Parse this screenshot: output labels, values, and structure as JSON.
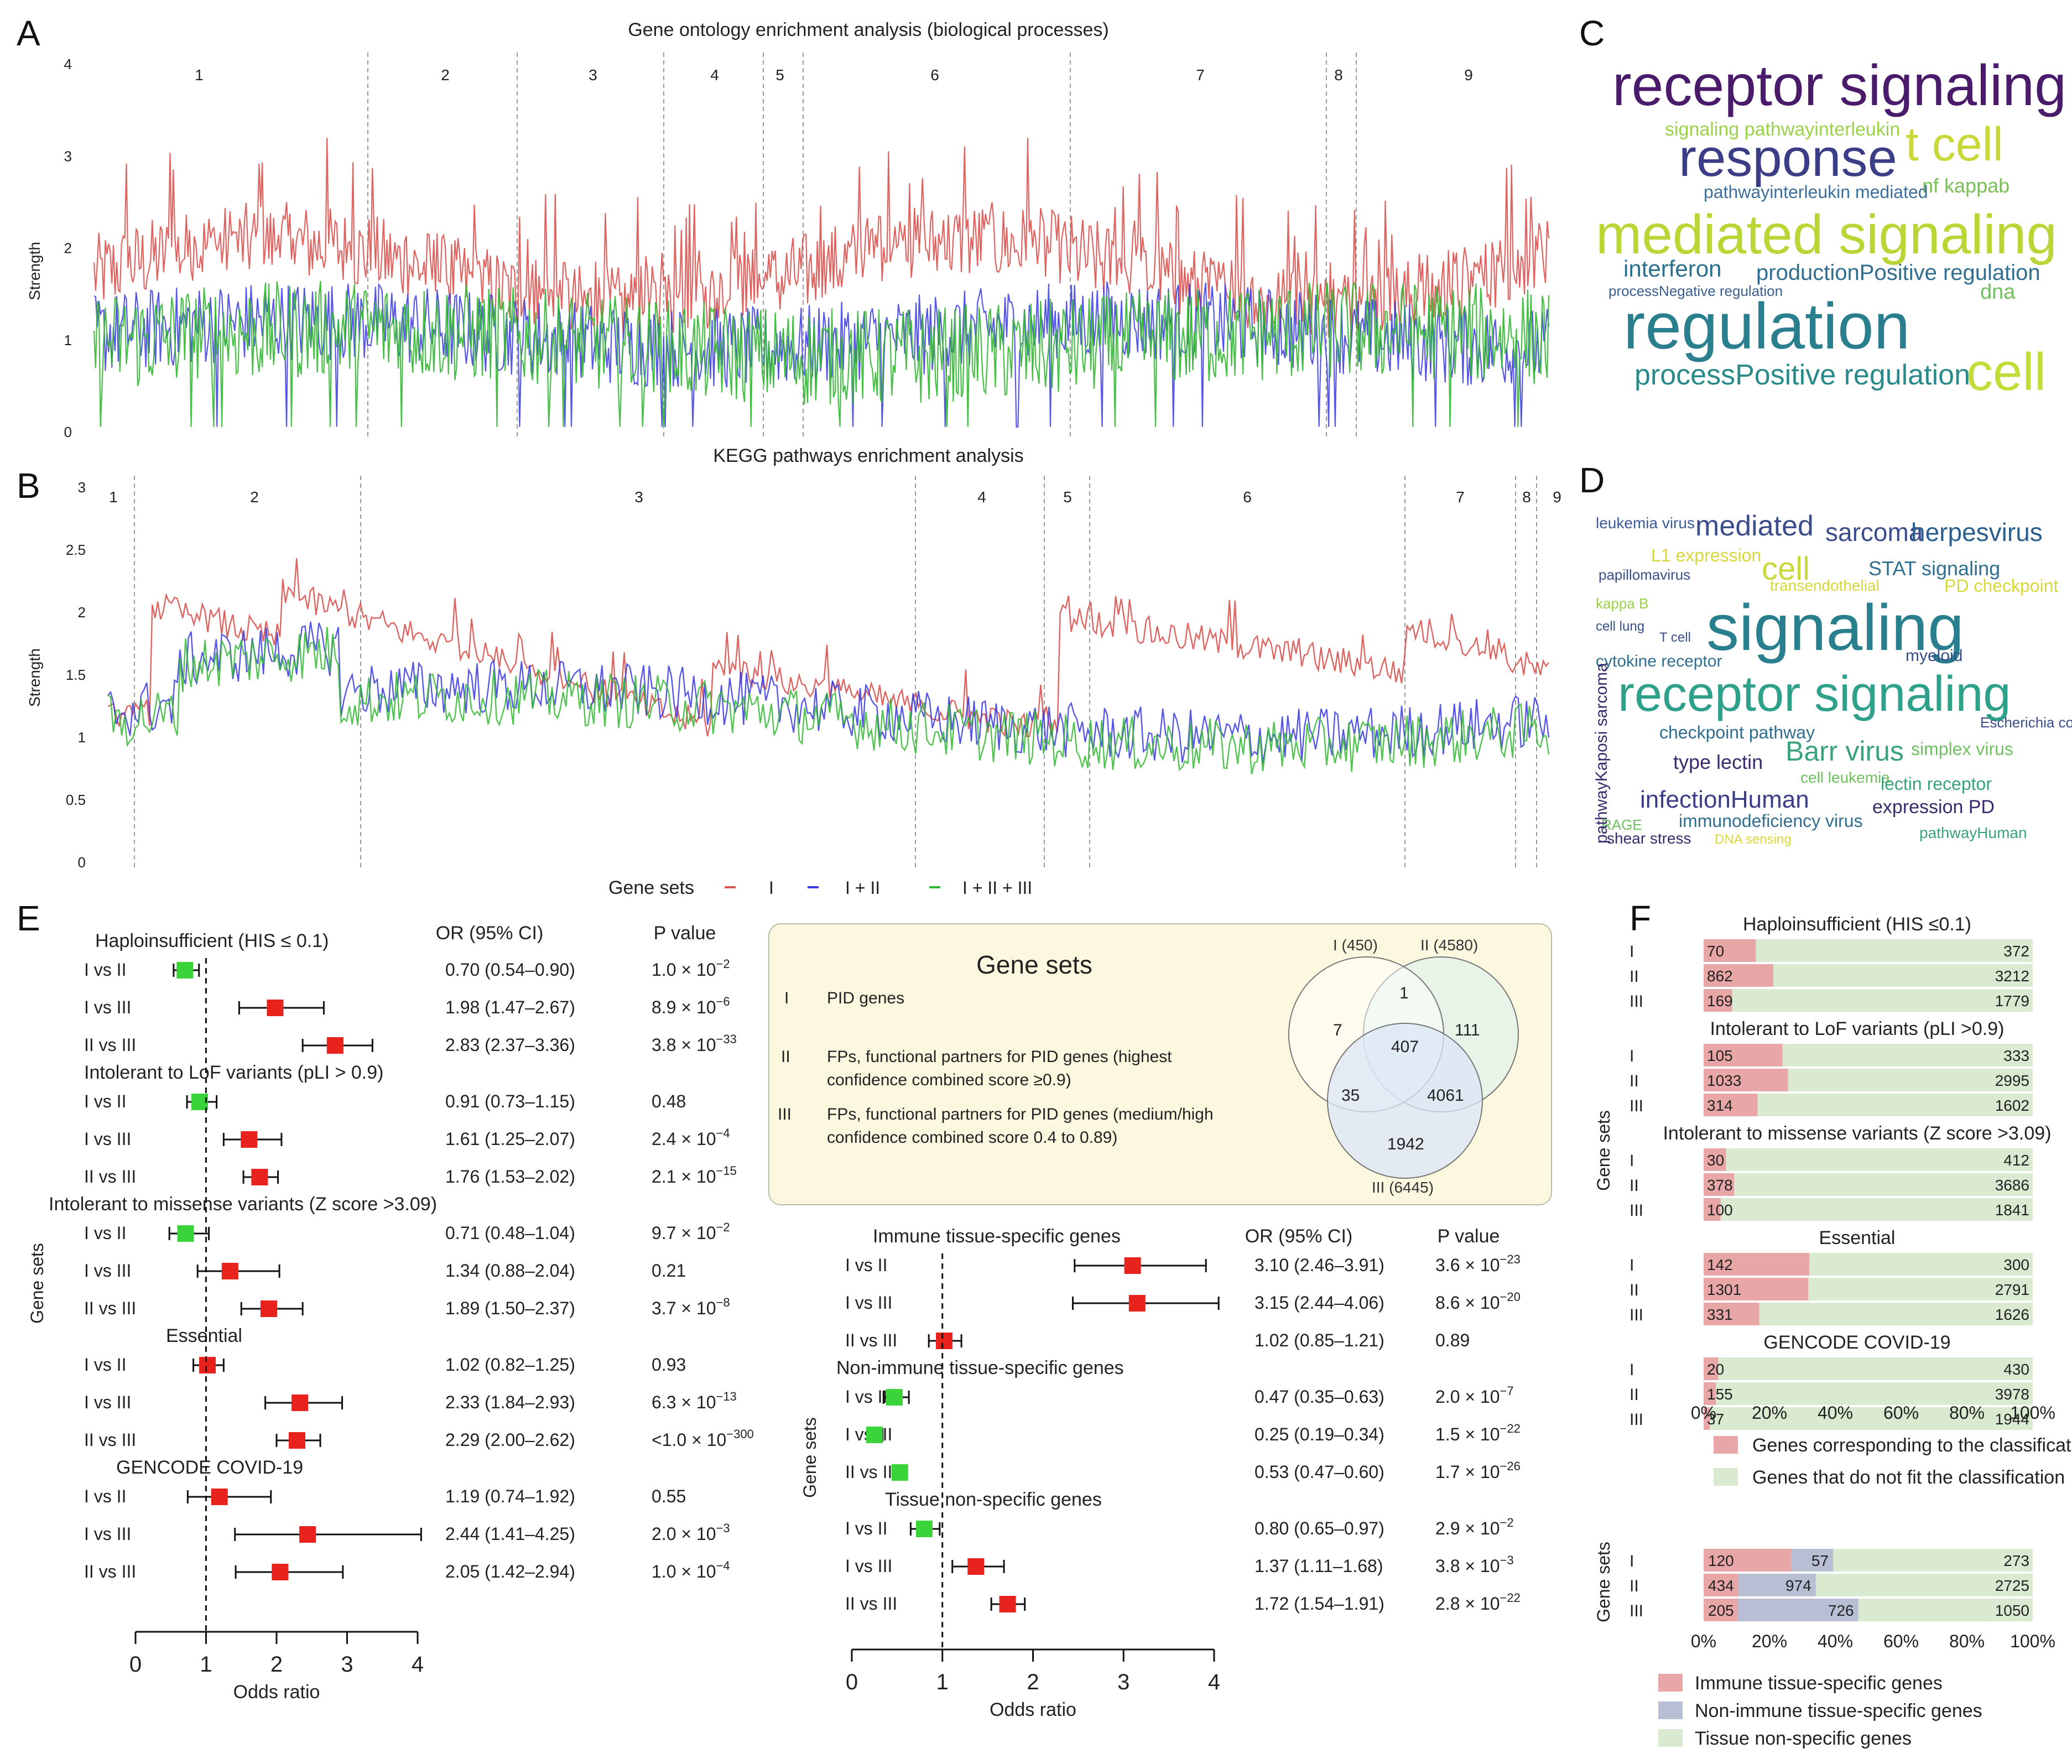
{
  "colors": {
    "red": "#d9534f",
    "redLight": "#e8a0a0",
    "blue": "#3a3ae0",
    "green": "#33b833",
    "markerRed": "#e8231e",
    "markerGreen": "#3ad43a",
    "barRed": "#e8a6a6",
    "barGreen": "#d9ead0",
    "barGrey": "#b8bfd4",
    "venn1": "#ffffff",
    "venn2": "#e4f3e8",
    "venn3": "#dbe6f7",
    "boxFill": "#fbf8df"
  },
  "panelLetters": {
    "A": "A",
    "B": "B",
    "C": "C",
    "D": "D",
    "E": "E",
    "F": "F"
  },
  "panelA": {
    "title": "Gene ontology enrichment analysis (biological processes)",
    "ylabel": "Strength",
    "yticks": [
      "0",
      "1",
      "2",
      "3",
      "4"
    ],
    "clusters": [
      "1",
      "2",
      "3",
      "4",
      "5",
      "6",
      "7",
      "8",
      "9"
    ]
  },
  "panelB": {
    "title": "KEGG pathways enrichment analysis",
    "ylabel": "Strength",
    "yticks": [
      "0",
      "0.5",
      "1",
      "1.5",
      "2",
      "2.5",
      "3"
    ],
    "clusters": [
      "1",
      "2",
      "3",
      "4",
      "5",
      "6",
      "7",
      "8",
      "9"
    ]
  },
  "legendAB": {
    "title": "Gene sets",
    "items": [
      "I",
      "I + II",
      "I + II + III"
    ]
  },
  "chart_data": [
    {
      "type": "line",
      "panel": "A",
      "title": "Gene ontology enrichment analysis (biological processes)",
      "ylabel": "Strength",
      "ylim": [
        0,
        4
      ],
      "series": [
        {
          "name": "I",
          "approx_range": [
            1.3,
            3.7
          ]
        },
        {
          "name": "I + II",
          "approx_range": [
            0,
            2.2
          ]
        },
        {
          "name": "I + II + III",
          "approx_range": [
            0,
            2.1
          ]
        }
      ]
    },
    {
      "type": "line",
      "panel": "B",
      "title": "KEGG pathways enrichment analysis",
      "ylabel": "Strength",
      "ylim": [
        0,
        3
      ],
      "series": [
        {
          "name": "I",
          "approx_range": [
            1.0,
            2.75
          ]
        },
        {
          "name": "I + II",
          "approx_range": [
            0.6,
            1.8
          ]
        },
        {
          "name": "I + II + III",
          "approx_range": [
            0.45,
            1.8
          ]
        }
      ]
    },
    {
      "type": "scatter",
      "panel": "E-left",
      "xlabel": "Odds ratio",
      "xlim": [
        0,
        4
      ],
      "xticks": [
        "0",
        "1",
        "2",
        "3",
        "4"
      ],
      "ylabel": "Gene sets",
      "colHeaders": [
        "OR (95% CI)",
        "P value"
      ],
      "groups": [
        {
          "title": "Haploinsufficient (HIS ≤ 0.1)",
          "rows": [
            {
              "label": "I vs II",
              "or": 0.7,
              "lo": 0.54,
              "hi": 0.9,
              "text": "0.70 (0.54–0.90)",
              "pBase": "1.0 × 10",
              "pExp": "−2",
              "sig": "low"
            },
            {
              "label": "I vs III",
              "or": 1.98,
              "lo": 1.47,
              "hi": 2.67,
              "text": "1.98 (1.47–2.67)",
              "pBase": "8.9 × 10",
              "pExp": "−6",
              "sig": "high"
            },
            {
              "label": "II vs III",
              "or": 2.83,
              "lo": 2.37,
              "hi": 3.36,
              "text": "2.83 (2.37–3.36)",
              "pBase": "3.8 × 10",
              "pExp": "−33",
              "sig": "high"
            }
          ]
        },
        {
          "title": "Intolerant to LoF variants (pLI > 0.9)",
          "rows": [
            {
              "label": "I vs II",
              "or": 0.91,
              "lo": 0.73,
              "hi": 1.15,
              "text": "0.91 (0.73–1.15)",
              "pBase": "0.48",
              "pExp": "",
              "sig": "low"
            },
            {
              "label": "I vs III",
              "or": 1.61,
              "lo": 1.25,
              "hi": 2.07,
              "text": "1.61 (1.25–2.07)",
              "pBase": "2.4 × 10",
              "pExp": "−4",
              "sig": "high"
            },
            {
              "label": "II vs III",
              "or": 1.76,
              "lo": 1.53,
              "hi": 2.02,
              "text": "1.76 (1.53–2.02)",
              "pBase": "2.1 × 10",
              "pExp": "−15",
              "sig": "high"
            }
          ]
        },
        {
          "title": "Intolerant to missense variants (Z score >3.09)",
          "rows": [
            {
              "label": "I vs II",
              "or": 0.71,
              "lo": 0.48,
              "hi": 1.04,
              "text": "0.71 (0.48–1.04)",
              "pBase": "9.7 × 10",
              "pExp": "−2",
              "sig": "low"
            },
            {
              "label": "I vs III",
              "or": 1.34,
              "lo": 0.88,
              "hi": 2.04,
              "text": "1.34 (0.88–2.04)",
              "pBase": "0.21",
              "pExp": "",
              "sig": "high"
            },
            {
              "label": "II vs III",
              "or": 1.89,
              "lo": 1.5,
              "hi": 2.37,
              "text": "1.89 (1.50–2.37)",
              "pBase": "3.7 × 10",
              "pExp": "−8",
              "sig": "high"
            }
          ]
        },
        {
          "title": "Essential",
          "rows": [
            {
              "label": "I vs II",
              "or": 1.02,
              "lo": 0.82,
              "hi": 1.25,
              "text": "1.02 (0.82–1.25)",
              "pBase": "0.93",
              "pExp": "",
              "sig": "high"
            },
            {
              "label": "I vs III",
              "or": 2.33,
              "lo": 1.84,
              "hi": 2.93,
              "text": "2.33 (1.84–2.93)",
              "pBase": "6.3 × 10",
              "pExp": "−13",
              "sig": "high"
            },
            {
              "label": "II vs III",
              "or": 2.29,
              "lo": 2.0,
              "hi": 2.62,
              "text": "2.29 (2.00–2.62)",
              "pBase": "<1.0 × 10",
              "pExp": "−300",
              "sig": "high"
            }
          ]
        },
        {
          "title": "GENCODE COVID-19",
          "rows": [
            {
              "label": "I vs II",
              "or": 1.19,
              "lo": 0.74,
              "hi": 1.92,
              "text": "1.19 (0.74–1.92)",
              "pBase": "0.55",
              "pExp": "",
              "sig": "high"
            },
            {
              "label": "I vs III",
              "or": 2.44,
              "lo": 1.41,
              "hi": 4.25,
              "text": "2.44 (1.41–4.25)",
              "pBase": "2.0 × 10",
              "pExp": "−3",
              "sig": "high"
            },
            {
              "label": "II vs III",
              "or": 2.05,
              "lo": 1.42,
              "hi": 2.94,
              "text": "2.05 (1.42–2.94)",
              "pBase": "1.0 × 10",
              "pExp": "−4",
              "sig": "high"
            }
          ]
        }
      ]
    },
    {
      "type": "scatter",
      "panel": "E-right",
      "xlabel": "Odds ratio",
      "xlim": [
        0,
        4
      ],
      "xticks": [
        "0",
        "1",
        "2",
        "3",
        "4"
      ],
      "ylabel": "Gene sets",
      "colHeaders": [
        "OR (95% CI)",
        "P value"
      ],
      "groups": [
        {
          "title": "Immune tissue-specific genes",
          "rows": [
            {
              "label": "I vs II",
              "or": 3.1,
              "lo": 2.46,
              "hi": 3.91,
              "text": "3.10 (2.46–3.91)",
              "pBase": "3.6 × 10",
              "pExp": "−23",
              "sig": "high"
            },
            {
              "label": "I vs III",
              "or": 3.15,
              "lo": 2.44,
              "hi": 4.06,
              "text": "3.15 (2.44–4.06)",
              "pBase": "8.6 × 10",
              "pExp": "−20",
              "sig": "high"
            },
            {
              "label": "II vs III",
              "or": 1.02,
              "lo": 0.85,
              "hi": 1.21,
              "text": "1.02 (0.85–1.21)",
              "pBase": "0.89",
              "pExp": "",
              "sig": "high"
            }
          ]
        },
        {
          "title": "Non-immune tissue-specific genes",
          "rows": [
            {
              "label": "I vs II",
              "or": 0.47,
              "lo": 0.35,
              "hi": 0.63,
              "text": "0.47 (0.35–0.63)",
              "pBase": "2.0 × 10",
              "pExp": "−7",
              "sig": "low"
            },
            {
              "label": "I vs III",
              "or": 0.25,
              "lo": 0.19,
              "hi": 0.34,
              "text": "0.25 (0.19–0.34)",
              "pBase": "1.5 × 10",
              "pExp": "−22",
              "sig": "low"
            },
            {
              "label": "II vs III",
              "or": 0.53,
              "lo": 0.47,
              "hi": 0.6,
              "text": "0.53 (0.47–0.60)",
              "pBase": "1.7 × 10",
              "pExp": "−26",
              "sig": "low"
            }
          ]
        },
        {
          "title": "Tissue non-specific genes",
          "rows": [
            {
              "label": "I vs II",
              "or": 0.8,
              "lo": 0.65,
              "hi": 0.97,
              "text": "0.80 (0.65–0.97)",
              "pBase": "2.9 × 10",
              "pExp": "−2",
              "sig": "low"
            },
            {
              "label": "I vs III",
              "or": 1.37,
              "lo": 1.11,
              "hi": 1.68,
              "text": "1.37 (1.11–1.68)",
              "pBase": "3.8 × 10",
              "pExp": "−3",
              "sig": "high"
            },
            {
              "label": "II vs III",
              "or": 1.72,
              "lo": 1.54,
              "hi": 1.91,
              "text": "1.72 (1.54–1.91)",
              "pBase": "2.8 × 10",
              "pExp": "−22",
              "sig": "high"
            }
          ]
        }
      ]
    },
    {
      "type": "bar",
      "panel": "F-top",
      "stacked": true,
      "ylabel": "Gene sets",
      "xticks": [
        "0%",
        "20%",
        "40%",
        "60%",
        "80%",
        "100%"
      ],
      "groups": [
        {
          "title": "Haploinsufficient (HIS ≤0.1)",
          "rows": [
            {
              "label": "I",
              "a": 70,
              "b": 372
            },
            {
              "label": "II",
              "a": 862,
              "b": 3212
            },
            {
              "label": "III",
              "a": 169,
              "b": 1779
            }
          ]
        },
        {
          "title": "Intolerant to LoF variants (pLI >0.9)",
          "rows": [
            {
              "label": "I",
              "a": 105,
              "b": 333
            },
            {
              "label": "II",
              "a": 1033,
              "b": 2995
            },
            {
              "label": "III",
              "a": 314,
              "b": 1602
            }
          ]
        },
        {
          "title": "Intolerant to missense variants (Z score >3.09)",
          "rows": [
            {
              "label": "I",
              "a": 30,
              "b": 412
            },
            {
              "label": "II",
              "a": 378,
              "b": 3686
            },
            {
              "label": "III",
              "a": 100,
              "b": 1841
            }
          ]
        },
        {
          "title": "Essential",
          "rows": [
            {
              "label": "I",
              "a": 142,
              "b": 300
            },
            {
              "label": "II",
              "a": 1301,
              "b": 2791
            },
            {
              "label": "III",
              "a": 331,
              "b": 1626
            }
          ]
        },
        {
          "title": "GENCODE COVID-19",
          "rows": [
            {
              "label": "I",
              "a": 20,
              "b": 430
            },
            {
              "label": "II",
              "a": 155,
              "b": 3978
            },
            {
              "label": "III",
              "a": 37,
              "b": 1944
            }
          ]
        }
      ],
      "legend": [
        "Genes corresponding to the classification",
        "Genes that do not fit the classification"
      ]
    },
    {
      "type": "bar",
      "panel": "F-bottom",
      "stacked": true,
      "ylabel": "Gene sets",
      "xticks": [
        "0%",
        "20%",
        "40%",
        "60%",
        "80%",
        "100%"
      ],
      "rows": [
        {
          "label": "I",
          "a": 120,
          "b": 57,
          "c": 273
        },
        {
          "label": "II",
          "a": 434,
          "b": 974,
          "c": 2725
        },
        {
          "label": "III",
          "a": 205,
          "b": 726,
          "c": 1050
        }
      ],
      "legend": [
        "Immune tissue-specific genes",
        "Non-immune tissue-specific genes",
        "Tissue non-specific genes"
      ]
    }
  ],
  "geneSetsBox": {
    "title": "Gene sets",
    "items": [
      {
        "roman": "I",
        "text1": "PID genes",
        "text2": ""
      },
      {
        "roman": "II",
        "text1": "FPs, functional partners for PID genes (highest",
        "text2": "confidence combined score ≥0.9)"
      },
      {
        "roman": "III",
        "text1": "FPs, functional partners for PID genes (medium/high",
        "text2": "confidence combined score 0.4 to 0.89)"
      }
    ],
    "venn": {
      "labelI": "I (450)",
      "labelII": "II (4580)",
      "labelIII": "III (6445)",
      "onlyI": "7",
      "I_II": "1",
      "onlyII": "111",
      "all": "407",
      "I_III": "35",
      "II_III": "4061",
      "onlyIII": "1942"
    }
  },
  "wordcloudC": [
    {
      "t": "receptor signaling",
      "c": "#4a1a6b"
    },
    {
      "t": "t cell",
      "c": "#c9d93a"
    },
    {
      "t": "response",
      "c": "#3b3d86"
    },
    {
      "t": "mediated signaling",
      "c": "#b8d636"
    },
    {
      "t": "regulation",
      "c": "#2a7f8e"
    },
    {
      "t": "cell",
      "c": "#c3dc3a"
    },
    {
      "t": "interferon",
      "c": "#2a6f8e"
    },
    {
      "t": "productionPositive regulation",
      "c": "#2f6e8e"
    },
    {
      "t": "processPositive regulation",
      "c": "#2a8a8a"
    },
    {
      "t": "nf kappab",
      "c": "#7bbf5a"
    },
    {
      "t": "signaling pathwayinterleukin",
      "c": "#9bd24a"
    },
    {
      "t": "pathwayinterleukin mediated",
      "c": "#3e6f9a"
    },
    {
      "t": "dna",
      "c": "#6fc060"
    },
    {
      "t": "processNegative regulation",
      "c": "#3a5f8e"
    }
  ],
  "wordcloudD": [
    {
      "t": "leukemia virus",
      "c": "#3a5a9a"
    },
    {
      "t": "mediated",
      "c": "#3b4d8a"
    },
    {
      "t": "sarcoma",
      "c": "#3b4d8a"
    },
    {
      "t": "herpesvirus",
      "c": "#2a5f8e"
    },
    {
      "t": "L1 expression",
      "c": "#d8d83a"
    },
    {
      "t": "cell",
      "c": "#c9d93a"
    },
    {
      "t": "STAT signaling",
      "c": "#2f6e8e"
    },
    {
      "t": "PD checkpoint",
      "c": "#d8d83a"
    },
    {
      "t": "papillomavirus",
      "c": "#3a4f8a"
    },
    {
      "t": "transendothelial",
      "c": "#d8d83a"
    },
    {
      "t": "kappa B",
      "c": "#9bd24a"
    },
    {
      "t": "signaling",
      "c": "#2a7f8e"
    },
    {
      "t": "cell lung",
      "c": "#3a4f8a"
    },
    {
      "t": "T cell",
      "c": "#3a4f8a"
    },
    {
      "t": "cytokine receptor",
      "c": "#2f6e8e"
    },
    {
      "t": "myeloid",
      "c": "#3a4f8a"
    },
    {
      "t": "receptor signaling",
      "c": "#2fa08a"
    },
    {
      "t": "checkpoint pathway",
      "c": "#2f6e8e"
    },
    {
      "t": "Escherichia coli",
      "c": "#3a4f8a"
    },
    {
      "t": "Barr virus",
      "c": "#3aa37a"
    },
    {
      "t": "simplex virus",
      "c": "#6fc060"
    },
    {
      "t": "type lectin",
      "c": "#3b2a6b"
    },
    {
      "t": "cell leukemia",
      "c": "#6fc060"
    },
    {
      "t": "lectin receptor",
      "c": "#3aa37a"
    },
    {
      "t": "infectionHuman",
      "c": "#3b3d86"
    },
    {
      "t": "expression PD",
      "c": "#3b2a6b"
    },
    {
      "t": "immunodeficiency virus",
      "c": "#2f6e8e"
    },
    {
      "t": "RAGE",
      "c": "#6fc060"
    },
    {
      "t": "shear stress",
      "c": "#3b2a6b"
    },
    {
      "t": "DNA sensing",
      "c": "#d8d83a"
    },
    {
      "t": "pathwayHuman",
      "c": "#3aa37a"
    },
    {
      "t": "pathwayKaposi sarcoma",
      "c": "#3b2a6b"
    }
  ]
}
